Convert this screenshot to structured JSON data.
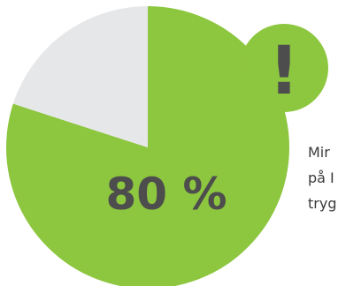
{
  "chart_data": {
    "type": "pie",
    "slices": [
      {
        "value": 80,
        "color": "#8dc63f"
      },
      {
        "value": 20,
        "color": "#e6e7e9"
      }
    ],
    "center_label": "80 %"
  },
  "badge": {
    "symbol": "!",
    "color": "#8dc63f"
  },
  "side_text": {
    "lines": [
      "Mir",
      "på I",
      "tryg"
    ]
  }
}
